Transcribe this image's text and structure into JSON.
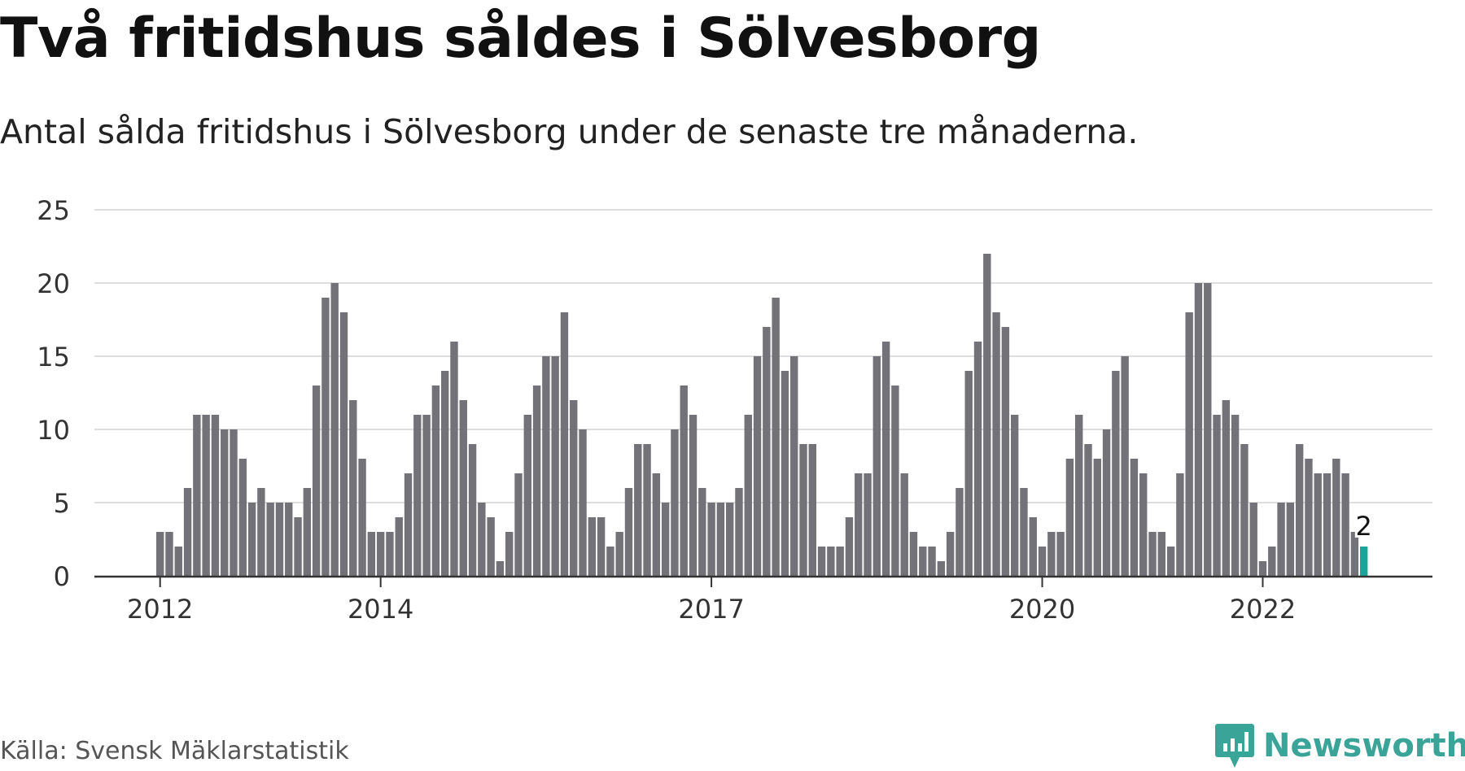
{
  "header": {
    "title": "Två fritidshus såldes i Sölvesborg",
    "subtitle": "Antal sålda fritidshus i Sölvesborg under de senaste tre månaderna."
  },
  "footer": {
    "source": "Källa: Svensk Mäklarstatistik",
    "logo_text": "Newsworthy",
    "logo_icon": "newsworthy-chart-bubble-icon"
  },
  "colors": {
    "bar": "#737278",
    "highlight": "#1aa59a",
    "grid": "#dedede",
    "axis": "#333333",
    "brand": "#3ba498"
  },
  "chart_data": {
    "type": "bar",
    "title": "Två fritidshus såldes i Sölvesborg",
    "subtitle": "Antal sålda fritidshus i Sölvesborg under de senaste tre månaderna.",
    "xlabel": "",
    "ylabel": "",
    "ylim": [
      0,
      25
    ],
    "yticks": [
      0,
      5,
      10,
      15,
      20,
      25
    ],
    "grid": true,
    "x_tick_labels": [
      {
        "label": "2012",
        "index": 0
      },
      {
        "label": "2014",
        "index": 24
      },
      {
        "label": "2017",
        "index": 60
      },
      {
        "label": "2020",
        "index": 96
      },
      {
        "label": "2022",
        "index": 120
      }
    ],
    "values": [
      3,
      3,
      2,
      6,
      11,
      11,
      11,
      10,
      10,
      8,
      5,
      6,
      5,
      5,
      5,
      4,
      6,
      13,
      19,
      20,
      18,
      12,
      8,
      3,
      3,
      3,
      4,
      7,
      11,
      11,
      13,
      14,
      16,
      12,
      9,
      5,
      4,
      1,
      3,
      7,
      11,
      13,
      15,
      15,
      18,
      12,
      10,
      4,
      4,
      2,
      3,
      6,
      9,
      9,
      7,
      5,
      10,
      13,
      11,
      6,
      5,
      5,
      5,
      6,
      11,
      15,
      17,
      19,
      14,
      15,
      9,
      9,
      2,
      2,
      2,
      4,
      7,
      7,
      15,
      16,
      13,
      7,
      3,
      2,
      2,
      1,
      3,
      6,
      14,
      16,
      22,
      18,
      17,
      11,
      6,
      4,
      2,
      3,
      3,
      8,
      11,
      9,
      8,
      10,
      14,
      15,
      8,
      7,
      3,
      3,
      2,
      7,
      18,
      20,
      20,
      11,
      12,
      11,
      9,
      5,
      1,
      2,
      5,
      5,
      9,
      8,
      7,
      7,
      8,
      7,
      3,
      2
    ],
    "highlight_index": 131,
    "annotation": {
      "index": 131,
      "text": "2"
    }
  }
}
